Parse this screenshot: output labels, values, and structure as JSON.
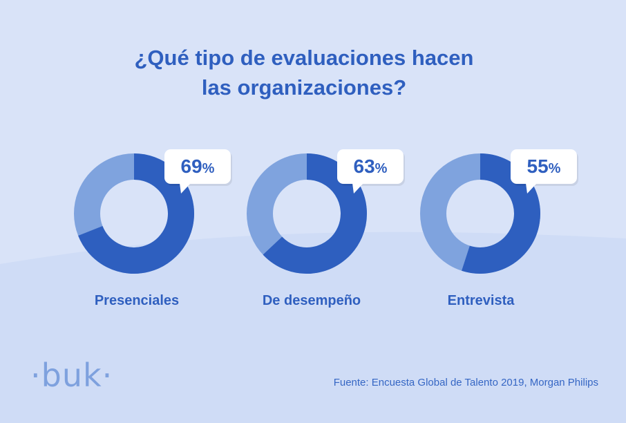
{
  "title": {
    "line1": "¿Qué tipo de evaluaciones hacen",
    "line2": "las organizaciones?"
  },
  "colors": {
    "background": "#d9e3f8",
    "highlight": "#2e5fbf",
    "remainder": "#7fa3de",
    "text": "#2f5fbf",
    "bubble": "#ffffff"
  },
  "chart_data": {
    "type": "pie",
    "series": [
      {
        "name": "Presenciales",
        "value": 69,
        "label": "69",
        "unit": "%"
      },
      {
        "name": "De desempeño",
        "value": 63,
        "label": "63",
        "unit": "%"
      },
      {
        "name": "Entrevista",
        "value": 55,
        "label": "55",
        "unit": "%"
      }
    ]
  },
  "logo": {
    "text": "·buk·"
  },
  "source": "Fuente: Encuesta Global de Talento 2019, Morgan Philips"
}
